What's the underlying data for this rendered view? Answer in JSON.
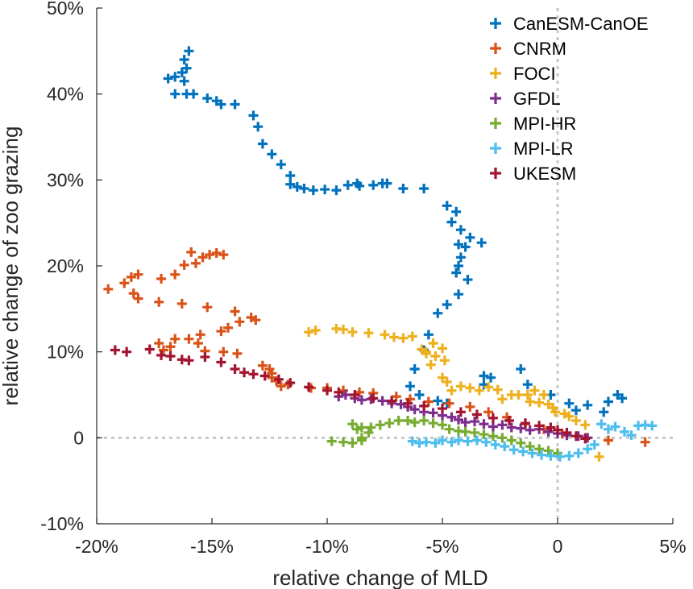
{
  "chart_data": {
    "type": "scatter",
    "title": "",
    "xlabel": "relative change of MLD",
    "ylabel": "relative change of zoo grazing",
    "xlim": [
      -20,
      5
    ],
    "ylim": [
      -10,
      50
    ],
    "x_ticks": [
      -20,
      -15,
      -10,
      -5,
      0,
      5
    ],
    "x_tick_labels": [
      "-20%",
      "-15%",
      "-10%",
      "-5%",
      "0",
      "5%"
    ],
    "y_ticks": [
      -10,
      0,
      10,
      20,
      30,
      40,
      50
    ],
    "y_tick_labels": [
      "-10%",
      "0",
      "10%",
      "20%",
      "30%",
      "40%",
      "50%"
    ],
    "zero_lines": true,
    "legend_position": "top-right",
    "series": [
      {
        "name": "CanESM-CanOE",
        "color": "#0072BD",
        "points": [
          [
            -16,
            45
          ],
          [
            -16.2,
            44
          ],
          [
            -16.1,
            43
          ],
          [
            -16.3,
            42.5
          ],
          [
            -16.6,
            42
          ],
          [
            -16.9,
            41.8
          ],
          [
            -16.2,
            41.5
          ],
          [
            -16.6,
            40
          ],
          [
            -16.1,
            40
          ],
          [
            -15.8,
            40
          ],
          [
            -15.2,
            39.5
          ],
          [
            -14.8,
            39.2
          ],
          [
            -14.6,
            38.8
          ],
          [
            -14,
            38.8
          ],
          [
            -13.2,
            37.5
          ],
          [
            -13,
            36.2
          ],
          [
            -12.8,
            34.2
          ],
          [
            -12.4,
            33
          ],
          [
            -12,
            31.8
          ],
          [
            -11.6,
            30.5
          ],
          [
            -11.6,
            29.5
          ],
          [
            -11.3,
            29.2
          ],
          [
            -11,
            29
          ],
          [
            -10.6,
            28.8
          ],
          [
            -10.1,
            28.9
          ],
          [
            -9.6,
            28.8
          ],
          [
            -9.1,
            29.4
          ],
          [
            -8.7,
            29.6
          ],
          [
            -8.6,
            29.3
          ],
          [
            -8,
            29.4
          ],
          [
            -7.6,
            29.6
          ],
          [
            -7.4,
            29.6
          ],
          [
            -6.7,
            29
          ],
          [
            -5.8,
            29
          ],
          [
            -4.8,
            27
          ],
          [
            -4.4,
            26.3
          ],
          [
            -4.6,
            25.1
          ],
          [
            -4.2,
            24.2
          ],
          [
            -4.3,
            22.5
          ],
          [
            -4,
            22.2
          ],
          [
            -4.2,
            21
          ],
          [
            -3.8,
            23.3
          ],
          [
            -3.3,
            22.7
          ],
          [
            -4.3,
            20
          ],
          [
            -4.4,
            19.2
          ],
          [
            -3.9,
            18.4
          ],
          [
            -4.3,
            16.7
          ],
          [
            -4.8,
            15.5
          ],
          [
            -5.2,
            14.5
          ],
          [
            -5.6,
            12
          ],
          [
            -5.8,
            10.2
          ],
          [
            -6.2,
            8
          ],
          [
            -6.4,
            6
          ],
          [
            -6,
            5
          ],
          [
            -5.2,
            4.3
          ],
          [
            -4.8,
            4
          ],
          [
            -3.2,
            7.2
          ],
          [
            -2.9,
            7
          ],
          [
            -3.2,
            6.2
          ],
          [
            -1.6,
            8
          ],
          [
            -1.3,
            6.2
          ],
          [
            -0.3,
            5
          ],
          [
            0.5,
            4
          ],
          [
            0.8,
            3.2
          ],
          [
            1.3,
            3.8
          ],
          [
            2,
            3
          ],
          [
            2.2,
            4.2
          ],
          [
            2.6,
            5
          ],
          [
            2.8,
            4.6
          ]
        ]
      },
      {
        "name": "CNRM",
        "color": "#D95319",
        "points": [
          [
            -19.5,
            17.3
          ],
          [
            -18.8,
            18
          ],
          [
            -18.5,
            18.7
          ],
          [
            -18.2,
            19
          ],
          [
            -18.4,
            16.8
          ],
          [
            -18.2,
            16.2
          ],
          [
            -17.2,
            18.5
          ],
          [
            -16.6,
            19
          ],
          [
            -16.2,
            20.1
          ],
          [
            -15.7,
            20.3
          ],
          [
            -15.4,
            21
          ],
          [
            -15.1,
            21.3
          ],
          [
            -14.8,
            21.5
          ],
          [
            -14.5,
            21.3
          ],
          [
            -15.9,
            21.6
          ],
          [
            -17.3,
            15.8
          ],
          [
            -16.3,
            15.6
          ],
          [
            -15.2,
            15.2
          ],
          [
            -14,
            14.7
          ],
          [
            -13.3,
            14
          ],
          [
            -13.1,
            13.7
          ],
          [
            -14.3,
            12.8
          ],
          [
            -13.8,
            13.5
          ],
          [
            -14.6,
            12.4
          ],
          [
            -15.5,
            12
          ],
          [
            -16,
            11.5
          ],
          [
            -16.6,
            11.5
          ],
          [
            -17.3,
            11
          ],
          [
            -17.1,
            10.2
          ],
          [
            -16.8,
            10.6
          ],
          [
            -15.6,
            11
          ],
          [
            -15.3,
            10.1
          ],
          [
            -14.5,
            10
          ],
          [
            -13.9,
            9.8
          ],
          [
            -12.8,
            8.4
          ],
          [
            -12.5,
            8
          ],
          [
            -12.4,
            7.5
          ],
          [
            -12.4,
            7
          ],
          [
            -12.2,
            6.6
          ],
          [
            -12,
            6
          ],
          [
            -11.7,
            6.2
          ],
          [
            -10.7,
            5.8
          ],
          [
            -10,
            5.8
          ],
          [
            -9.3,
            5.5
          ],
          [
            -8.6,
            5.3
          ],
          [
            -8,
            5.2
          ],
          [
            -7,
            4.8
          ],
          [
            -6.4,
            4.5
          ],
          [
            -5.6,
            4.2
          ],
          [
            -4.7,
            4
          ],
          [
            -3.8,
            3.6
          ],
          [
            -3,
            3
          ],
          [
            -2.2,
            2.4
          ],
          [
            -1.4,
            1.6
          ],
          [
            -0.6,
            1
          ],
          [
            0.2,
            0.5
          ],
          [
            1.2,
            0
          ],
          [
            2.2,
            -0.3
          ],
          [
            3.8,
            -0.5
          ]
        ]
      },
      {
        "name": "FOCI",
        "color": "#EDB120",
        "points": [
          [
            -10.8,
            12.3
          ],
          [
            -10.5,
            12.5
          ],
          [
            -9.6,
            12.7
          ],
          [
            -9.3,
            12.6
          ],
          [
            -8.9,
            12.3
          ],
          [
            -8.2,
            12.2
          ],
          [
            -7.5,
            12
          ],
          [
            -7.1,
            11.7
          ],
          [
            -6.7,
            11.6
          ],
          [
            -6.3,
            11.8
          ],
          [
            -5.7,
            10
          ],
          [
            -5.4,
            11
          ],
          [
            -5.7,
            9.8
          ],
          [
            -5.9,
            10.3
          ],
          [
            -5,
            10.4
          ],
          [
            -5.3,
            9.5
          ],
          [
            -4.9,
            9
          ],
          [
            -5.5,
            8.5
          ],
          [
            -5,
            7
          ],
          [
            -4.8,
            6.5
          ],
          [
            -4.6,
            5.5
          ],
          [
            -4.2,
            6
          ],
          [
            -3.8,
            5.8
          ],
          [
            -3.4,
            5.5
          ],
          [
            -3,
            5.9
          ],
          [
            -2.6,
            5.6
          ],
          [
            -2.4,
            4.5
          ],
          [
            -2,
            5
          ],
          [
            -1.7,
            5
          ],
          [
            -1.3,
            5
          ],
          [
            -1.2,
            4.2
          ],
          [
            -1,
            5.5
          ],
          [
            -0.6,
            5
          ],
          [
            -0.8,
            4.1
          ],
          [
            -0.4,
            3.9
          ],
          [
            -0.2,
            3.5
          ],
          [
            -0.1,
            3
          ],
          [
            0.3,
            2.8
          ],
          [
            0.5,
            2.5
          ],
          [
            0.8,
            2
          ],
          [
            1.2,
            1.5
          ],
          [
            1.8,
            -2.2
          ]
        ]
      },
      {
        "name": "GFDL",
        "color": "#7E2F8E",
        "points": [
          [
            -9.5,
            4.8
          ],
          [
            -9.2,
            5
          ],
          [
            -8.8,
            4.6
          ],
          [
            -8.5,
            4.4
          ],
          [
            -8.1,
            4.5
          ],
          [
            -7.6,
            4.3
          ],
          [
            -7.2,
            4
          ],
          [
            -6.8,
            3.9
          ],
          [
            -6.5,
            3.6
          ],
          [
            -6.2,
            3.3
          ],
          [
            -5.8,
            3
          ],
          [
            -5.4,
            2.9
          ],
          [
            -5,
            2.6
          ],
          [
            -4.6,
            2.4
          ],
          [
            -4.3,
            2.1
          ],
          [
            -4,
            1.8
          ],
          [
            -3.6,
            1.9
          ],
          [
            -3.2,
            1.6
          ],
          [
            -2.8,
            1.3
          ],
          [
            -2.4,
            1.5
          ],
          [
            -2,
            1.2
          ],
          [
            -1.6,
            1.1
          ],
          [
            -1.2,
            0.9
          ],
          [
            -0.8,
            1
          ],
          [
            -0.4,
            0.7
          ],
          [
            0,
            0.5
          ],
          [
            0.4,
            0.3
          ],
          [
            0.9,
            0.2
          ],
          [
            1.3,
            0
          ]
        ]
      },
      {
        "name": "MPI-HR",
        "color": "#77AC30",
        "points": [
          [
            -9.8,
            -0.4
          ],
          [
            -9.3,
            -0.5
          ],
          [
            -8.9,
            -0.6
          ],
          [
            -8.5,
            0
          ],
          [
            -8.7,
            1
          ],
          [
            -8.9,
            1.6
          ],
          [
            -8.5,
            1.2
          ],
          [
            -8.2,
            0.6
          ],
          [
            -8.5,
            -0.3
          ],
          [
            -8.1,
            1.2
          ],
          [
            -7.7,
            1.5
          ],
          [
            -7.3,
            1.7
          ],
          [
            -6.9,
            2
          ],
          [
            -6.5,
            2
          ],
          [
            -6.2,
            1.8
          ],
          [
            -5.8,
            2
          ],
          [
            -5.4,
            1.7
          ],
          [
            -5,
            1.5
          ],
          [
            -4.7,
            1
          ],
          [
            -4.3,
            0.8
          ],
          [
            -4,
            0.7
          ],
          [
            -3.6,
            0.6
          ],
          [
            -3.2,
            0.4
          ],
          [
            -2.8,
            0.2
          ],
          [
            -2.4,
            0
          ],
          [
            -2,
            -0.3
          ],
          [
            -1.6,
            -0.6
          ],
          [
            -1.2,
            -1
          ],
          [
            -0.8,
            -1.3
          ],
          [
            -0.4,
            -1.5
          ],
          [
            0,
            -1.8
          ]
        ]
      },
      {
        "name": "MPI-LR",
        "color": "#4DBEEE",
        "points": [
          [
            -6.3,
            -0.4
          ],
          [
            -6,
            -0.6
          ],
          [
            -5.7,
            -0.5
          ],
          [
            -5.3,
            -0.6
          ],
          [
            -5,
            -0.3
          ],
          [
            -4.6,
            -0.5
          ],
          [
            -4.3,
            -0.3
          ],
          [
            -3.9,
            -0.4
          ],
          [
            -3.5,
            -0.3
          ],
          [
            -3.1,
            -0.5
          ],
          [
            -2.7,
            -0.8
          ],
          [
            -2.3,
            -1
          ],
          [
            -1.9,
            -1.4
          ],
          [
            -1.5,
            -1.6
          ],
          [
            -1.1,
            -1.8
          ],
          [
            -0.7,
            -2
          ],
          [
            -0.3,
            -2.1
          ],
          [
            0.1,
            -2.2
          ],
          [
            0.5,
            -2.1
          ],
          [
            0.9,
            -1.8
          ],
          [
            1.3,
            -1.3
          ],
          [
            1.6,
            -0.8
          ],
          [
            1.9,
            1.6
          ],
          [
            2.2,
            1
          ],
          [
            2.5,
            1.3
          ],
          [
            2.9,
            0.7
          ],
          [
            3.2,
            0.3
          ],
          [
            3.5,
            1.4
          ],
          [
            3.8,
            1.5
          ],
          [
            4.1,
            1.4
          ]
        ]
      },
      {
        "name": "UKESM",
        "color": "#A2142F",
        "points": [
          [
            -19.2,
            10.2
          ],
          [
            -18.7,
            10
          ],
          [
            -17.7,
            10.3
          ],
          [
            -17.2,
            9.6
          ],
          [
            -16.8,
            9.5
          ],
          [
            -16.3,
            9.1
          ],
          [
            -16,
            9
          ],
          [
            -15.3,
            9.4
          ],
          [
            -14.6,
            8.8
          ],
          [
            -14,
            8
          ],
          [
            -13.6,
            7.6
          ],
          [
            -13.2,
            7.4
          ],
          [
            -12.7,
            7.2
          ],
          [
            -12.1,
            6.8
          ],
          [
            -11.6,
            6.4
          ],
          [
            -10.8,
            5.9
          ],
          [
            -10,
            5.5
          ],
          [
            -9.5,
            5.3
          ],
          [
            -8.8,
            5
          ],
          [
            -8,
            4.6
          ],
          [
            -7.2,
            4.3
          ],
          [
            -6.5,
            4
          ],
          [
            -5.8,
            3.7
          ],
          [
            -5,
            3.4
          ],
          [
            -4.2,
            3
          ],
          [
            -3.5,
            2.7
          ],
          [
            -2.8,
            2.3
          ],
          [
            -2.1,
            2
          ],
          [
            -1.4,
            1.7
          ],
          [
            -0.8,
            1.4
          ],
          [
            -0.3,
            1.2
          ],
          [
            0,
            0.9
          ],
          [
            0.4,
            0.6
          ],
          [
            0.8,
            0.2
          ],
          [
            1.2,
            -0.1
          ]
        ]
      }
    ]
  }
}
